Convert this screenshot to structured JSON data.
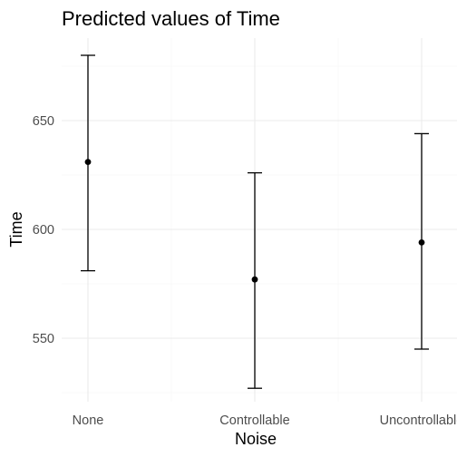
{
  "chart_data": {
    "type": "scatter",
    "title": "Predicted values of Time",
    "xlabel": "Noise",
    "ylabel": "Time",
    "categories": [
      "None",
      "Controllable",
      "Uncontrollable"
    ],
    "points": [
      {
        "x": "None",
        "y": 631,
        "lower": 581,
        "upper": 680
      },
      {
        "x": "Controllable",
        "y": 577,
        "lower": 527,
        "upper": 626
      },
      {
        "x": "Uncontrollable",
        "y": 594,
        "lower": 545,
        "upper": 644
      }
    ],
    "y_ticks": [
      550,
      600,
      650
    ],
    "y_tick_labels": [
      "550",
      "600",
      "650"
    ],
    "ylim": [
      520,
      688
    ],
    "grid": true,
    "legend": "none",
    "colors": {
      "point": "#000000",
      "errorbar": "#000000",
      "grid": "#ebebeb",
      "tick_text": "#4d4d4d"
    }
  }
}
